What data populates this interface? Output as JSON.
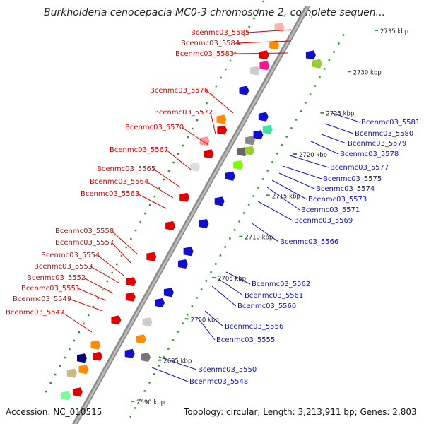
{
  "title": "Burkholderia cenocepacia MC0-3 chromosome 2, complete sequen...",
  "accession_text": "Accession: NC_010515",
  "topology_text": "Topology: circular; Length: 3,213,911 bp; Genes: 2,803",
  "colors": {
    "backbone": "#8c8c8c",
    "gc_dots": "#2e9a2e",
    "forward_label": "#e00000",
    "reverse_label": "#1010cc"
  },
  "kbp_ticks": [
    {
      "label": "2690 kbp",
      "pos": 2690
    },
    {
      "label": "2695 kbp",
      "pos": 2695
    },
    {
      "label": "2700 kbp",
      "pos": 2700
    },
    {
      "label": "2705 kbp",
      "pos": 2705
    },
    {
      "label": "2710 kbp",
      "pos": 2710
    },
    {
      "label": "2715 kbp",
      "pos": 2715
    },
    {
      "label": "2720 kbp",
      "pos": 2720
    },
    {
      "label": "2725 kbp",
      "pos": 2725
    },
    {
      "label": "2730 kbp",
      "pos": 2730
    },
    {
      "label": "2735 kbp",
      "pos": 2735
    }
  ],
  "forward_gene_labels": [
    "Bcenmc03_5585",
    "Bcenmc03_5584",
    "Bcenmc03_5583",
    "Bcenmc03_5576",
    "Bcenmc03_5572",
    "Bcenmc03_5570",
    "Bcenmc03_5567",
    "Bcenmc03_5565",
    "Bcenmc03_5564",
    "Bcenmc03_5563",
    "Bcenmc03_5558",
    "Bcenmc03_5557",
    "Bcenmc03_5554",
    "Bcenmc03_5553",
    "Bcenmc03_5552",
    "Bcenmc03_5551",
    "Bcenmc03_5549",
    "Bcenmc03_5547"
  ],
  "reverse_gene_labels": [
    "Bcenmc03_5581",
    "Bcenmc03_5580",
    "Bcenmc03_5579",
    "Bcenmc03_5578",
    "Bcenmc03_5577",
    "Bcenmc03_5575",
    "Bcenmc03_5574",
    "Bcenmc03_5573",
    "Bcenmc03_5571",
    "Bcenmc03_5569",
    "Bcenmc03_5566",
    "Bcenmc03_5562",
    "Bcenmc03_5561",
    "Bcenmc03_5560",
    "Bcenmc03_5556",
    "Bcenmc03_5555",
    "Bcenmc03_5550",
    "Bcenmc03_5548"
  ]
}
